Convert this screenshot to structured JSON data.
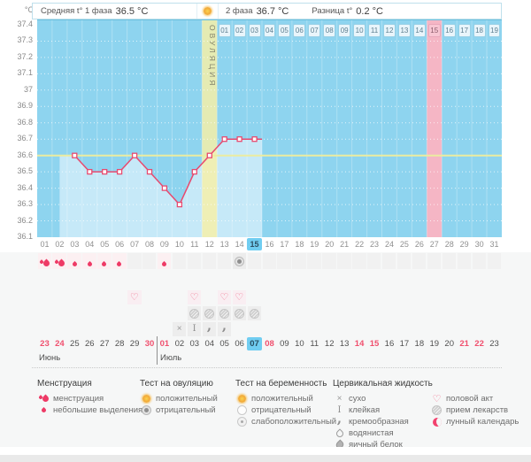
{
  "header": {
    "unit": "°C",
    "phase1_label": "Средняя t° 1 фаза",
    "phase1_value": "36.5 °C",
    "phase2_label": "2 фаза",
    "phase2_value": "36.7 °C",
    "diff_label": "Разница t°",
    "diff_value": "0.2 °C"
  },
  "chart_data": {
    "type": "line",
    "ylabel": "°C",
    "yticks": [
      "37.4",
      "37.3",
      "37.2",
      "37.1",
      "37",
      "36.9",
      "36.8",
      "36.7",
      "36.6",
      "36.5",
      "36.4",
      "36.3",
      "36.2",
      "36.1"
    ],
    "ylim": [
      36.1,
      37.4
    ],
    "x_days": 31,
    "day_labels": [
      "01",
      "02",
      "03",
      "04",
      "05",
      "06",
      "07",
      "08",
      "09",
      "10",
      "11",
      "12",
      "13",
      "14",
      "15",
      "16",
      "17",
      "18",
      "19",
      "20",
      "21",
      "22",
      "23",
      "24",
      "25",
      "26",
      "27",
      "28",
      "29",
      "30",
      "31"
    ],
    "series": [
      {
        "name": "базальная температура",
        "days": [
          3,
          4,
          5,
          6,
          7,
          8,
          9,
          10,
          11,
          12,
          13,
          14,
          15
        ],
        "values": [
          36.6,
          36.5,
          36.5,
          36.5,
          36.6,
          36.5,
          36.4,
          36.3,
          36.5,
          36.6,
          36.7,
          36.7,
          36.7
        ]
      }
    ],
    "coverline_temp": 36.6,
    "ovulation_day": 12,
    "ovulation_label": "ОВУЛЯЦИЯ",
    "expected_period_day": 27,
    "expected_period_dpo": 15,
    "today_day": 15,
    "dpo_labels": [
      "01",
      "02",
      "03",
      "04",
      "05",
      "06",
      "07",
      "08",
      "09",
      "10",
      "11",
      "12",
      "13",
      "14",
      "15",
      "16",
      "17",
      "18",
      "19"
    ]
  },
  "cycle_strip": {
    "menstruation_days": [
      1,
      2
    ],
    "spotting_days": [
      3,
      4,
      5,
      6,
      9
    ],
    "ovulation_test_negative_days": [
      14
    ]
  },
  "calendar": {
    "dates": [
      "23",
      "24",
      "25",
      "26",
      "27",
      "28",
      "29",
      "30",
      "01",
      "02",
      "03",
      "04",
      "05",
      "06",
      "07",
      "08",
      "09",
      "10",
      "11",
      "12",
      "13",
      "14",
      "15",
      "16",
      "17",
      "18",
      "19",
      "20",
      "21",
      "22",
      "23"
    ],
    "months": [
      {
        "name": "Июнь"
      },
      {
        "name": "Июль"
      }
    ],
    "month_divider_after_index": 7,
    "weekend_indices": [
      0,
      1,
      7,
      8,
      15,
      21,
      22,
      28,
      29
    ],
    "today_index": 14,
    "intercourse_indices": [
      6,
      10,
      12,
      13
    ],
    "medication_indices": [
      10,
      11,
      12,
      13,
      14
    ],
    "cervical_fluid": [
      {
        "index": 9,
        "type": "dry"
      },
      {
        "index": 10,
        "type": "sticky"
      },
      {
        "index": 11,
        "type": "creamy"
      },
      {
        "index": 12,
        "type": "creamy"
      }
    ]
  },
  "legend": {
    "columns": [
      {
        "title": "Менструация",
        "items": [
          {
            "icon": "drops-big",
            "label": "менструация"
          },
          {
            "icon": "drop-small",
            "label": "небольшие выделения"
          }
        ]
      },
      {
        "title": "Тест на овуляцию",
        "items": [
          {
            "icon": "test-positive",
            "label": "положительный"
          },
          {
            "icon": "test-negative",
            "label": "отрицательный"
          }
        ]
      },
      {
        "title": "Тест на беременность",
        "items": [
          {
            "icon": "test-positive",
            "label": "положительный"
          },
          {
            "icon": "circle-outline",
            "label": "отрицательный"
          },
          {
            "icon": "circle-weak",
            "label": "слабоположительный"
          }
        ]
      },
      {
        "title": "Цервикальная жидкость",
        "items": [
          {
            "icon": "dry",
            "label": "сухо"
          },
          {
            "icon": "sticky",
            "label": "клейкая"
          },
          {
            "icon": "creamy",
            "label": "кремообразная"
          },
          {
            "icon": "watery",
            "label": "водянистая"
          },
          {
            "icon": "eggwhite",
            "label": "яичный белок"
          }
        ]
      },
      {
        "title": "",
        "items": [
          {
            "icon": "heart",
            "label": "половой акт"
          },
          {
            "icon": "medication",
            "label": "прием лекарств"
          },
          {
            "icon": "moon",
            "label": "лунный календарь"
          }
        ]
      }
    ]
  },
  "colors": {
    "chart_blue": "#8ed4ef",
    "fill_blue": "#c6e9f8",
    "ovulation_yellow": "#f8f0a6",
    "period_pink": "#f5b6c5",
    "line_pink": "#e84a6f",
    "coverline_yellow": "#ebeca0",
    "today_blue": "#70cdf1",
    "weekend_red": "#f0506e",
    "drop_red": "#ee3a66"
  }
}
